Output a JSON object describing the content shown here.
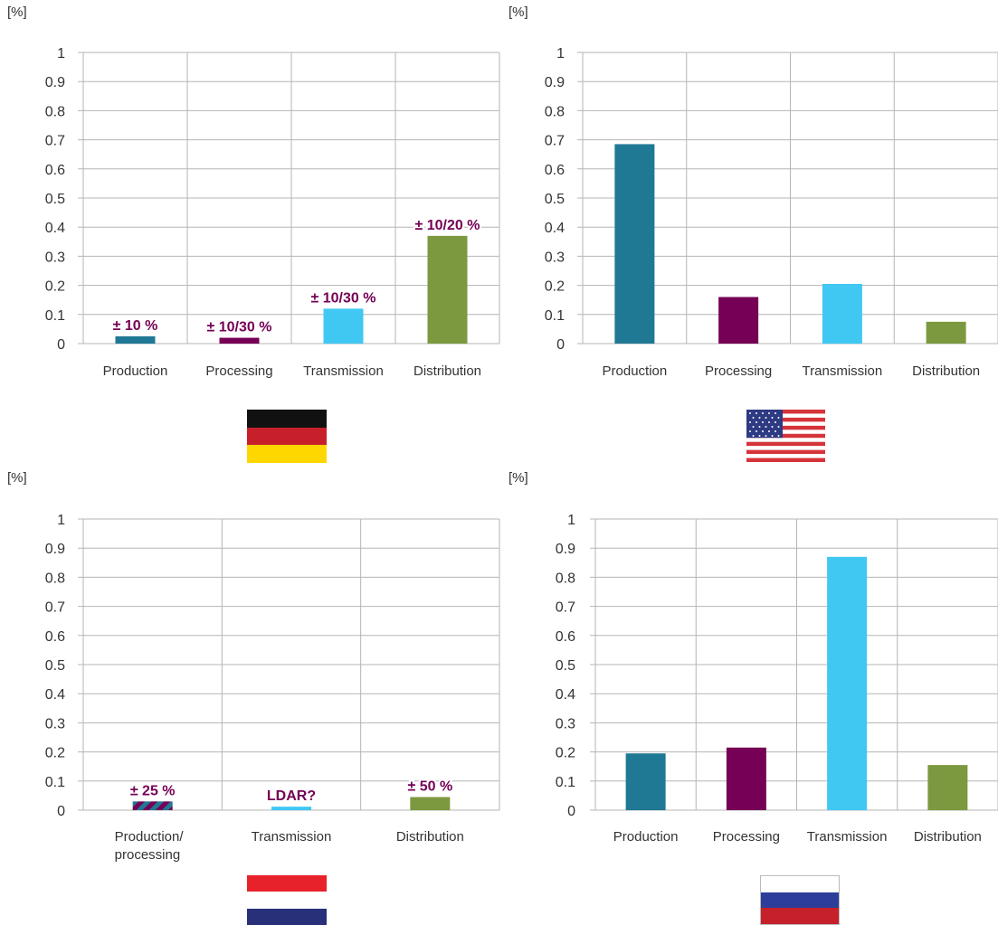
{
  "colors": {
    "production": "#1f7894",
    "processing": "#750055",
    "transmission": "#40c8f3",
    "distribution": "#7c993f",
    "annotation": "#750055",
    "grid": "#b5b5b5",
    "text": "#333333"
  },
  "chart_data": [
    {
      "type": "bar",
      "country": "Germany",
      "ylabel": "[%]",
      "ylim": [
        0,
        1
      ],
      "yticks": [
        "0",
        "0.1",
        "0.2",
        "0.3",
        "0.4",
        "0.5",
        "0.6",
        "0.7",
        "0.8",
        "0.9",
        "1"
      ],
      "categories": [
        "Production",
        "Processing",
        "Transmission",
        "Distribution"
      ],
      "values": [
        0.025,
        0.02,
        0.12,
        0.37
      ],
      "annotations": [
        "± 10 %",
        "± 10/30 %",
        "± 10/30 %",
        "± 10/20 %"
      ],
      "bar_colors": [
        "production",
        "processing",
        "transmission",
        "distribution"
      ]
    },
    {
      "type": "bar",
      "country": "United States",
      "ylabel": "[%]",
      "ylim": [
        0,
        1
      ],
      "yticks": [
        "0",
        "0.1",
        "0.2",
        "0.3",
        "0.4",
        "0.5",
        "0.6",
        "0.7",
        "0.8",
        "0.9",
        "1"
      ],
      "categories": [
        "Production",
        "Processing",
        "Transmission",
        "Distribution"
      ],
      "values": [
        0.685,
        0.16,
        0.205,
        0.075
      ],
      "annotations": [
        "",
        "",
        "",
        ""
      ],
      "bar_colors": [
        "production",
        "processing",
        "transmission",
        "distribution"
      ]
    },
    {
      "type": "bar",
      "country": "Netherlands",
      "ylabel": "[%]",
      "ylim": [
        0,
        1
      ],
      "yticks": [
        "0",
        "0.1",
        "0.2",
        "0.3",
        "0.4",
        "0.5",
        "0.6",
        "0.7",
        "0.8",
        "0.9",
        "1"
      ],
      "categories": [
        "Production/ processing",
        "Transmission",
        "Distribution"
      ],
      "values": [
        0.03,
        0.012,
        0.045
      ],
      "annotations": [
        "± 25 %",
        "LDAR?",
        "± 50 %"
      ],
      "bar_colors": [
        "striped",
        "transmission",
        "distribution"
      ]
    },
    {
      "type": "bar",
      "country": "Russia",
      "ylabel": "[%]",
      "ylim": [
        0,
        1
      ],
      "yticks": [
        "0",
        "0.1",
        "0.2",
        "0.3",
        "0.4",
        "0.5",
        "0.6",
        "0.7",
        "0.8",
        "0.9",
        "1"
      ],
      "categories": [
        "Production",
        "Processing",
        "Transmission",
        "Distribution"
      ],
      "values": [
        0.195,
        0.215,
        0.87,
        0.155
      ],
      "annotations": [
        "",
        "",
        "",
        ""
      ],
      "bar_colors": [
        "production",
        "processing",
        "transmission",
        "distribution"
      ]
    }
  ]
}
